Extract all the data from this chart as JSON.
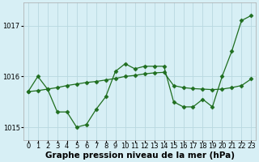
{
  "xlabel": "Graphe pression niveau de la mer (hPa)",
  "x": [
    0,
    1,
    2,
    3,
    4,
    5,
    6,
    7,
    8,
    9,
    10,
    11,
    12,
    13,
    14,
    15,
    16,
    17,
    18,
    19,
    20,
    21,
    22,
    23
  ],
  "line1": [
    1015.7,
    1016.0,
    1015.75,
    1015.3,
    1015.3,
    1015.0,
    1015.05,
    1015.35,
    1015.6,
    1016.1,
    1016.25,
    1016.15,
    1016.2,
    1016.2,
    1016.2,
    1015.5,
    1015.4,
    1015.4,
    1015.55,
    1015.4,
    1016.0,
    1016.5,
    1017.1,
    1017.2
  ],
  "line2": [
    1015.7,
    1015.72,
    1015.75,
    1015.78,
    1015.82,
    1015.85,
    1015.88,
    1015.9,
    1015.93,
    1015.96,
    1016.0,
    1016.02,
    1016.05,
    1016.07,
    1016.08,
    1015.82,
    1015.78,
    1015.76,
    1015.75,
    1015.74,
    1015.75,
    1015.78,
    1015.82,
    1015.95
  ],
  "line_color": "#1f6e1f",
  "bg_color": "#d7eff5",
  "grid_color": "#b8d8e0",
  "ylim": [
    1014.75,
    1017.45
  ],
  "yticks": [
    1015,
    1016,
    1017
  ],
  "xlim": [
    -0.5,
    23.5
  ],
  "marker": "D",
  "markersize": 2.5,
  "linewidth": 0.9,
  "xlabel_fontsize": 7.5,
  "tick_fontsize": 6.0,
  "fig_width": 3.2,
  "fig_height": 2.0,
  "dpi": 100
}
